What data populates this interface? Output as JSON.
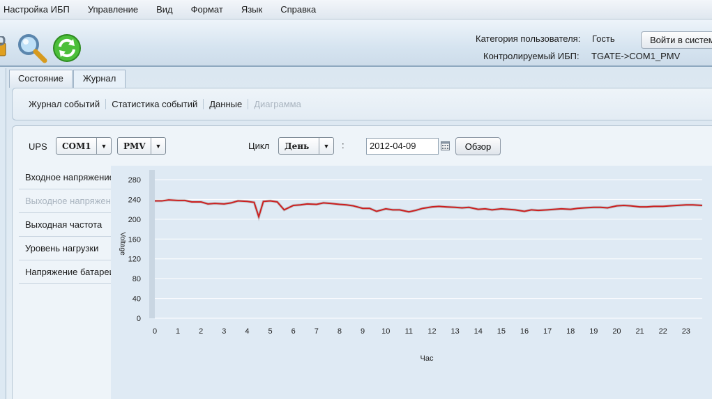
{
  "menu": [
    "Настройка ИБП",
    "Управление",
    "Вид",
    "Формат",
    "Язык",
    "Справка"
  ],
  "toolbar": {
    "user_category_label": "Категория пользователя:",
    "user_category_value": "Гость",
    "monitored_ups_label": "Контролируемый ИБП:",
    "monitored_ups_value": "TGATE->COM1_PMV",
    "login_button": "Войти в систему"
  },
  "tabs": [
    {
      "label": "Состояние",
      "active": false
    },
    {
      "label": "Журнал",
      "active": true
    }
  ],
  "subnav": [
    {
      "label": "Журнал событий",
      "enabled": true
    },
    {
      "label": "Статистика событий",
      "enabled": true
    },
    {
      "label": "Данные",
      "enabled": true
    },
    {
      "label": "Диаграмма",
      "enabled": false
    }
  ],
  "controls": {
    "ups_label": "UPS",
    "port_value": "COM1",
    "model_value": "PMV",
    "cycle_label": "Цикл",
    "cycle_value": "День",
    "colon": ":",
    "date_value": "2012-04-09",
    "browse_button": "Обзор"
  },
  "side_list": [
    {
      "label": "Входное напряжение",
      "enabled": true
    },
    {
      "label": "Выходное напряжение",
      "enabled": false
    },
    {
      "label": "Выходная частота",
      "enabled": true
    },
    {
      "label": "Уровень нагрузки",
      "enabled": true
    },
    {
      "label": "Напряжение батареи",
      "enabled": true
    }
  ],
  "colors": {
    "line": "#cc1f1f",
    "accent_bar": "#c9d6e2",
    "grid": "#ffffff"
  },
  "chart_data": {
    "type": "line",
    "xlabel": "Час",
    "ylabel": "Voltage",
    "ylim": [
      0,
      280
    ],
    "yticks": [
      0,
      40,
      80,
      120,
      160,
      200,
      240,
      280
    ],
    "xlim": [
      0,
      23.7
    ],
    "xticks": [
      0,
      1,
      2,
      3,
      4,
      5,
      6,
      7,
      8,
      9,
      10,
      11,
      12,
      13,
      14,
      15,
      16,
      17,
      18,
      19,
      20,
      21,
      22,
      23
    ],
    "grid": true,
    "series": [
      {
        "x": [
          0,
          0.3,
          0.6,
          1,
          1.3,
          1.6,
          2,
          2.3,
          2.6,
          3,
          3.3,
          3.6,
          4,
          4.3,
          4.5,
          4.7,
          5,
          5.3,
          5.6,
          6,
          6.3,
          6.6,
          7,
          7.3,
          7.6,
          8,
          8.3,
          8.6,
          9,
          9.3,
          9.6,
          10,
          10.3,
          10.6,
          11,
          11.3,
          11.6,
          12,
          12.3,
          12.6,
          13,
          13.3,
          13.6,
          14,
          14.3,
          14.6,
          15,
          15.3,
          15.6,
          16,
          16.3,
          16.6,
          17,
          17.3,
          17.6,
          18,
          18.3,
          18.6,
          19,
          19.3,
          19.6,
          20,
          20.3,
          20.6,
          21,
          21.3,
          21.6,
          22,
          22.3,
          22.6,
          23,
          23.3,
          23.7
        ],
        "y": [
          237,
          237,
          239,
          238,
          238,
          235,
          235,
          231,
          232,
          231,
          233,
          237,
          236,
          234,
          205,
          236,
          237,
          235,
          219,
          228,
          229,
          231,
          230,
          233,
          232,
          230,
          229,
          227,
          222,
          222,
          216,
          221,
          219,
          219,
          215,
          218,
          222,
          225,
          226,
          225,
          224,
          223,
          224,
          220,
          221,
          219,
          221,
          220,
          219,
          216,
          219,
          218,
          219,
          220,
          221,
          220,
          222,
          223,
          224,
          224,
          223,
          227,
          228,
          227,
          225,
          225,
          226,
          226,
          227,
          228,
          229,
          229,
          228
        ]
      }
    ]
  }
}
